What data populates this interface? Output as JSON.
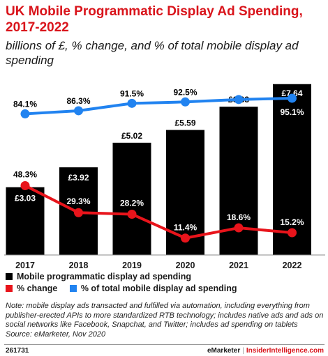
{
  "chart_data": {
    "type": "bar",
    "title": "UK Mobile Programmatic Display Ad Spending, 2017-2022",
    "subtitle": "billions of £, % change, and % of total mobile display ad spending",
    "categories": [
      "2017",
      "2018",
      "2019",
      "2020",
      "2021",
      "2022"
    ],
    "series": [
      {
        "name": "Mobile programmatic display ad spending",
        "kind": "bar",
        "values": [
          3.03,
          3.92,
          5.02,
          5.59,
          6.63,
          7.64
        ],
        "labels": [
          "£3.03",
          "£3.92",
          "£5.02",
          "£5.59",
          "£6.63",
          "£7.64"
        ]
      },
      {
        "name": "% change",
        "kind": "line",
        "values": [
          48.3,
          29.3,
          28.2,
          11.4,
          18.6,
          15.2
        ],
        "labels": [
          "48.3%",
          "29.3%",
          "28.2%",
          "11.4%",
          "18.6%",
          "15.2%"
        ]
      },
      {
        "name": "% of total mobile display ad spending",
        "kind": "line",
        "values": [
          84.1,
          86.3,
          91.5,
          92.5,
          94.2,
          95.1
        ],
        "labels": [
          "84.1%",
          "86.3%",
          "91.5%",
          "92.5%",
          "94.2%",
          "95.1%"
        ]
      }
    ],
    "colors": {
      "bars": "#000000",
      "pct_change": "#e8141b",
      "pct_total": "#2183f0"
    },
    "xlabel": "",
    "ylabel": "",
    "legend_position": "bottom",
    "grid": false
  },
  "note": "Note: mobile display ads transacted and fulfilled via automation, including everything from publisher-erected APIs to more standardized RTB technology; includes native ads and ads on social networks like Facebook, Snapchat, and Twitter; includes ad spending on tablets",
  "source": "Source: eMarketer, Nov 2020",
  "footer": {
    "chart_id": "261731",
    "brand_left": "eMarketer",
    "separator": "|",
    "brand_right": "InsiderIntelligence.com"
  }
}
